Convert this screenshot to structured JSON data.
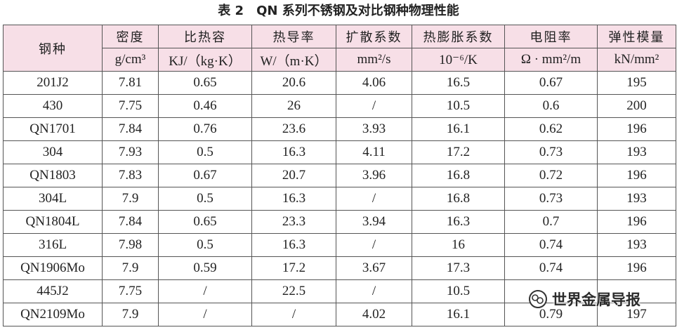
{
  "header": {
    "title": "表 2　QN 系列不锈钢及对比钢种物理性能"
  },
  "table": {
    "columns": [
      "钢种",
      "密度",
      "比热容",
      "热导率",
      "扩散系数",
      "热膨胀系数",
      "电阻率",
      "弹性模量"
    ],
    "units": [
      "g/cm³",
      "KJ/（kg·K）",
      "W/（m·K）",
      "mm²/s",
      "10⁻⁶/K",
      "Ω · mm²/m",
      "kN/mm²"
    ],
    "rows": [
      [
        "201J2",
        "7.81",
        "0.65",
        "20.6",
        "4.06",
        "16.5",
        "0.67",
        "195"
      ],
      [
        "430",
        "7.75",
        "0.46",
        "26",
        "/",
        "10.5",
        "0.6",
        "200"
      ],
      [
        "QN1701",
        "7.84",
        "0.76",
        "23.6",
        "3.93",
        "16.1",
        "0.62",
        "196"
      ],
      [
        "304",
        "7.93",
        "0.5",
        "16.3",
        "4.11",
        "17.2",
        "0.73",
        "193"
      ],
      [
        "QN1803",
        "7.83",
        "0.67",
        "20.7",
        "3.96",
        "16.8",
        "0.72",
        "196"
      ],
      [
        "304L",
        "7.9",
        "0.5",
        "16.3",
        "/",
        "16.8",
        "0.73",
        "193"
      ],
      [
        "QN1804L",
        "7.84",
        "0.65",
        "23.3",
        "3.94",
        "16.3",
        "0.7",
        "196"
      ],
      [
        "316L",
        "7.98",
        "0.5",
        "16.3",
        "/",
        "16",
        "0.74",
        "193"
      ],
      [
        "QN1906Mo",
        "7.9",
        "0.59",
        "17.2",
        "3.67",
        "17.3",
        "0.74",
        "196"
      ],
      [
        "445J2",
        "7.75",
        "/",
        "22.5",
        "/",
        "10.5",
        null,
        null
      ],
      [
        "QN2109Mo",
        "7.9",
        "/",
        "/",
        "4.02",
        "16.1",
        "0.79",
        "197"
      ]
    ]
  },
  "watermark": "世界金属导报"
}
